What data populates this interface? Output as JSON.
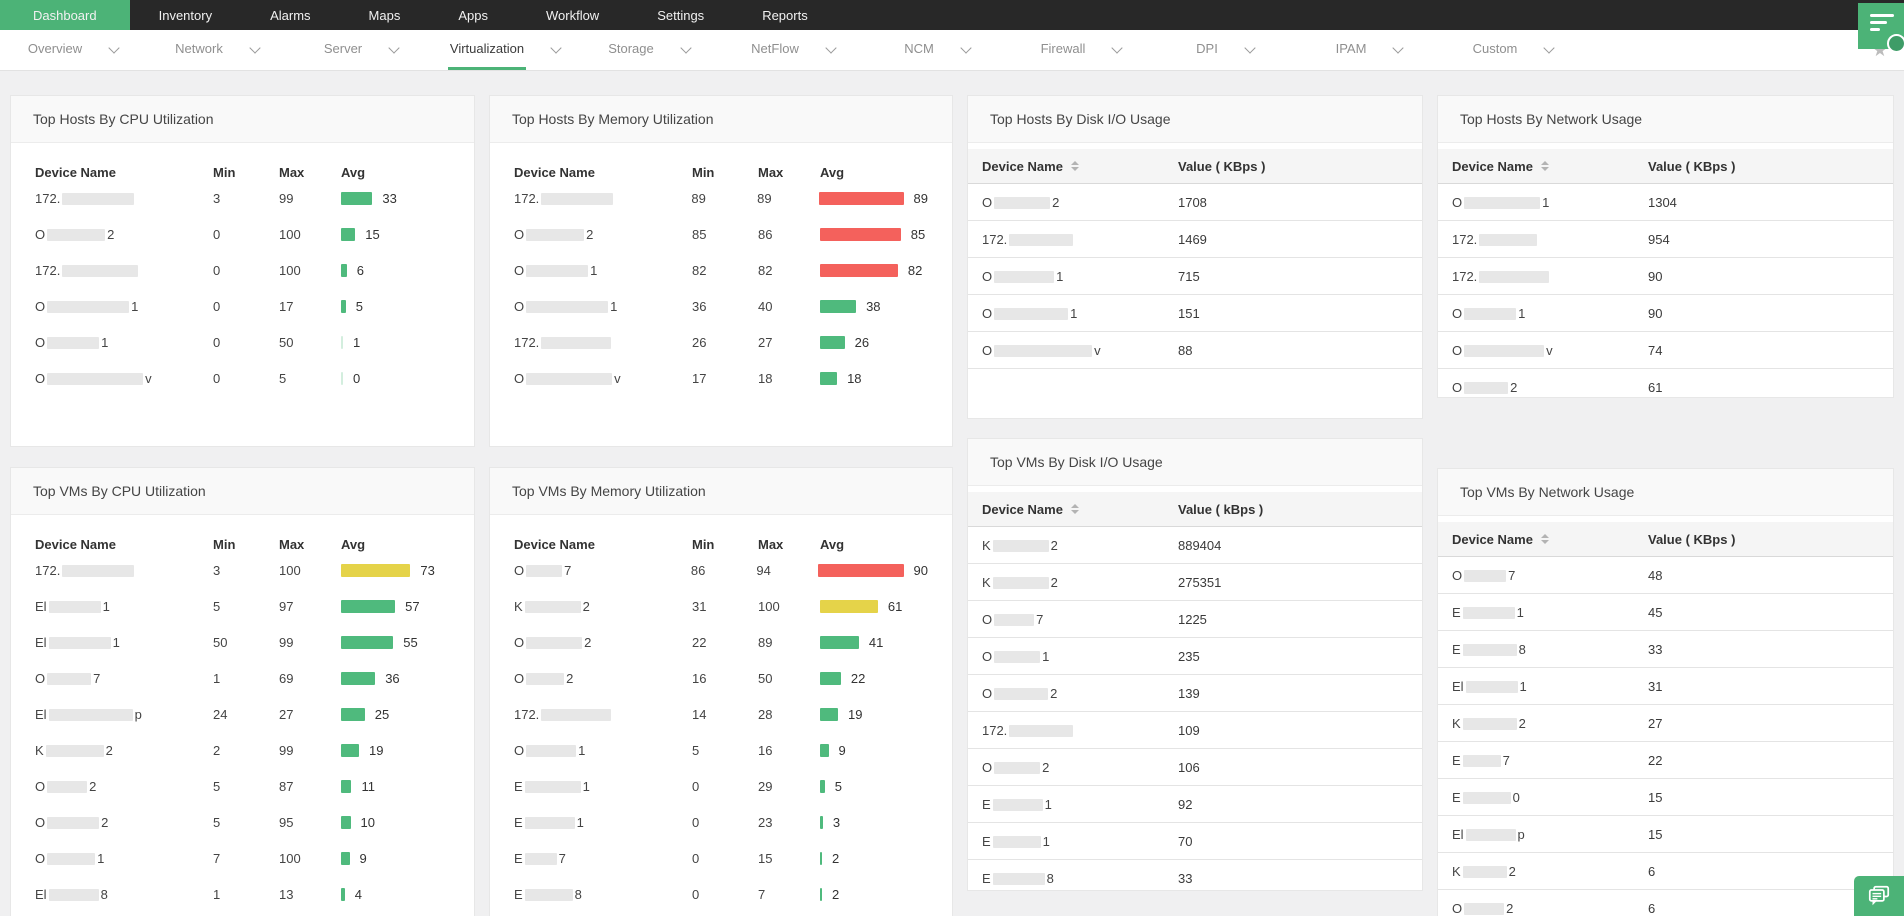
{
  "topnav": {
    "items": [
      {
        "label": "Dashboard",
        "active": true
      },
      {
        "label": "Inventory",
        "active": false
      },
      {
        "label": "Alarms",
        "active": false
      },
      {
        "label": "Maps",
        "active": false
      },
      {
        "label": "Apps",
        "active": false
      },
      {
        "label": "Workflow",
        "active": false
      },
      {
        "label": "Settings",
        "active": false
      },
      {
        "label": "Reports",
        "active": false
      }
    ]
  },
  "tabbar": {
    "tabs": [
      {
        "label": "Overview",
        "active": false
      },
      {
        "label": "Network",
        "active": false
      },
      {
        "label": "Server",
        "active": false
      },
      {
        "label": "Virtualization",
        "active": true
      },
      {
        "label": "Storage",
        "active": false
      },
      {
        "label": "NetFlow",
        "active": false
      },
      {
        "label": "NCM",
        "active": false
      },
      {
        "label": "Firewall",
        "active": false
      },
      {
        "label": "DPI",
        "active": false
      },
      {
        "label": "IPAM",
        "active": false
      },
      {
        "label": "Custom",
        "active": false
      }
    ],
    "star_icon": "★"
  },
  "colors": {
    "accent": "#4cb377",
    "bar_green": "#4fba7d",
    "bar_yellow": "#e5d349",
    "bar_red": "#f4615c"
  },
  "widgets": [
    {
      "id": "hosts_cpu",
      "title": "Top Hosts By CPU Utilization",
      "type": "bar",
      "columns": {
        "device": "Device Name",
        "min": "Min",
        "max": "Max",
        "avg": "Avg"
      },
      "rows": [
        {
          "name_prefix": "172.",
          "redacted_width": 72,
          "name_suffix": "",
          "min": "3",
          "max": "99",
          "avg": 33,
          "bar_color": "green"
        },
        {
          "name_prefix": "O",
          "redacted_width": 58,
          "name_suffix": "2",
          "min": "0",
          "max": "100",
          "avg": 15,
          "bar_color": "green"
        },
        {
          "name_prefix": "172.",
          "redacted_width": 76,
          "name_suffix": "",
          "min": "0",
          "max": "100",
          "avg": 6,
          "bar_color": "green"
        },
        {
          "name_prefix": "O",
          "redacted_width": 82,
          "name_suffix": "1",
          "min": "0",
          "max": "17",
          "avg": 5,
          "bar_color": "green"
        },
        {
          "name_prefix": "O",
          "redacted_width": 52,
          "name_suffix": "1",
          "min": "0",
          "max": "50",
          "avg": 1,
          "bar_color": "green"
        },
        {
          "name_prefix": "O",
          "redacted_width": 96,
          "name_suffix": "v",
          "min": "0",
          "max": "5",
          "avg": 0,
          "bar_color": "green"
        }
      ]
    },
    {
      "id": "hosts_mem",
      "title": "Top Hosts By Memory Utilization",
      "type": "bar",
      "columns": {
        "device": "Device Name",
        "min": "Min",
        "max": "Max",
        "avg": "Avg"
      },
      "rows": [
        {
          "name_prefix": "172.",
          "redacted_width": 72,
          "name_suffix": "",
          "min": "89",
          "max": "89",
          "avg": 89,
          "bar_color": "red"
        },
        {
          "name_prefix": "O",
          "redacted_width": 58,
          "name_suffix": "2",
          "min": "85",
          "max": "86",
          "avg": 85,
          "bar_color": "red"
        },
        {
          "name_prefix": "O",
          "redacted_width": 62,
          "name_suffix": "1",
          "min": "82",
          "max": "82",
          "avg": 82,
          "bar_color": "red"
        },
        {
          "name_prefix": "O",
          "redacted_width": 82,
          "name_suffix": "1",
          "min": "36",
          "max": "40",
          "avg": 38,
          "bar_color": "green"
        },
        {
          "name_prefix": "172.",
          "redacted_width": 70,
          "name_suffix": "",
          "min": "26",
          "max": "27",
          "avg": 26,
          "bar_color": "green"
        },
        {
          "name_prefix": "O",
          "redacted_width": 86,
          "name_suffix": "v",
          "min": "17",
          "max": "18",
          "avg": 18,
          "bar_color": "green"
        }
      ]
    },
    {
      "id": "hosts_disk",
      "title": "Top Hosts By Disk I/O Usage",
      "type": "value",
      "columns": {
        "device": "Device Name",
        "value": "Value ( KBps )"
      },
      "rows": [
        {
          "name_prefix": "O",
          "redacted_width": 56,
          "name_suffix": "2",
          "value": "1708"
        },
        {
          "name_prefix": "172.",
          "redacted_width": 64,
          "name_suffix": "",
          "value": "1469"
        },
        {
          "name_prefix": "O",
          "redacted_width": 60,
          "name_suffix": "1",
          "value": "715"
        },
        {
          "name_prefix": "O",
          "redacted_width": 74,
          "name_suffix": "1",
          "value": "151"
        },
        {
          "name_prefix": "O",
          "redacted_width": 98,
          "name_suffix": "v",
          "value": "88"
        }
      ]
    },
    {
      "id": "hosts_net",
      "title": "Top Hosts By Network Usage",
      "type": "value",
      "columns": {
        "device": "Device Name",
        "value": "Value ( KBps )"
      },
      "rows": [
        {
          "name_prefix": "O",
          "redacted_width": 76,
          "name_suffix": "1",
          "value": "1304"
        },
        {
          "name_prefix": "172.",
          "redacted_width": 58,
          "name_suffix": "",
          "value": "954"
        },
        {
          "name_prefix": "172.",
          "redacted_width": 70,
          "name_suffix": "",
          "value": "90"
        },
        {
          "name_prefix": "O",
          "redacted_width": 52,
          "name_suffix": "1",
          "value": "90"
        },
        {
          "name_prefix": "O",
          "redacted_width": 80,
          "name_suffix": "v",
          "value": "74"
        },
        {
          "name_prefix": "O",
          "redacted_width": 44,
          "name_suffix": "2",
          "value": "61"
        }
      ]
    },
    {
      "id": "vms_cpu",
      "title": "Top VMs By CPU Utilization",
      "type": "bar",
      "columns": {
        "device": "Device Name",
        "min": "Min",
        "max": "Max",
        "avg": "Avg"
      },
      "rows": [
        {
          "name_prefix": "172.",
          "redacted_width": 72,
          "name_suffix": "",
          "min": "3",
          "max": "100",
          "avg": 73,
          "bar_color": "yellow"
        },
        {
          "name_prefix": "El",
          "redacted_width": 52,
          "name_suffix": "1",
          "min": "5",
          "max": "97",
          "avg": 57,
          "bar_color": "green"
        },
        {
          "name_prefix": "El",
          "redacted_width": 62,
          "name_suffix": "1",
          "min": "50",
          "max": "99",
          "avg": 55,
          "bar_color": "green"
        },
        {
          "name_prefix": "O",
          "redacted_width": 44,
          "name_suffix": "7",
          "min": "1",
          "max": "69",
          "avg": 36,
          "bar_color": "green"
        },
        {
          "name_prefix": "El",
          "redacted_width": 84,
          "name_suffix": "p",
          "min": "24",
          "max": "27",
          "avg": 25,
          "bar_color": "green"
        },
        {
          "name_prefix": "K",
          "redacted_width": 58,
          "name_suffix": "2",
          "min": "2",
          "max": "99",
          "avg": 19,
          "bar_color": "green"
        },
        {
          "name_prefix": "O",
          "redacted_width": 40,
          "name_suffix": "2",
          "min": "5",
          "max": "87",
          "avg": 11,
          "bar_color": "green"
        },
        {
          "name_prefix": "O",
          "redacted_width": 52,
          "name_suffix": "2",
          "min": "5",
          "max": "95",
          "avg": 10,
          "bar_color": "green"
        },
        {
          "name_prefix": "O",
          "redacted_width": 48,
          "name_suffix": "1",
          "min": "7",
          "max": "100",
          "avg": 9,
          "bar_color": "green"
        },
        {
          "name_prefix": "El",
          "redacted_width": 50,
          "name_suffix": "8",
          "min": "1",
          "max": "13",
          "avg": 4,
          "bar_color": "green"
        }
      ]
    },
    {
      "id": "vms_mem",
      "title": "Top VMs By Memory Utilization",
      "type": "bar",
      "columns": {
        "device": "Device Name",
        "min": "Min",
        "max": "Max",
        "avg": "Avg"
      },
      "rows": [
        {
          "name_prefix": "O",
          "redacted_width": 36,
          "name_suffix": "7",
          "min": "86",
          "max": "94",
          "avg": 90,
          "bar_color": "red"
        },
        {
          "name_prefix": "K",
          "redacted_width": 56,
          "name_suffix": "2",
          "min": "31",
          "max": "100",
          "avg": 61,
          "bar_color": "yellow"
        },
        {
          "name_prefix": "O",
          "redacted_width": 56,
          "name_suffix": "2",
          "min": "22",
          "max": "89",
          "avg": 41,
          "bar_color": "green"
        },
        {
          "name_prefix": "O",
          "redacted_width": 38,
          "name_suffix": "2",
          "min": "16",
          "max": "50",
          "avg": 22,
          "bar_color": "green"
        },
        {
          "name_prefix": "172.",
          "redacted_width": 70,
          "name_suffix": "",
          "min": "14",
          "max": "28",
          "avg": 19,
          "bar_color": "green"
        },
        {
          "name_prefix": "O",
          "redacted_width": 50,
          "name_suffix": "1",
          "min": "5",
          "max": "16",
          "avg": 9,
          "bar_color": "green"
        },
        {
          "name_prefix": "E",
          "redacted_width": 56,
          "name_suffix": "1",
          "min": "0",
          "max": "29",
          "avg": 5,
          "bar_color": "green"
        },
        {
          "name_prefix": "E",
          "redacted_width": 50,
          "name_suffix": "1",
          "min": "0",
          "max": "23",
          "avg": 3,
          "bar_color": "green"
        },
        {
          "name_prefix": "E",
          "redacted_width": 32,
          "name_suffix": "7",
          "min": "0",
          "max": "15",
          "avg": 2,
          "bar_color": "green"
        },
        {
          "name_prefix": "E",
          "redacted_width": 48,
          "name_suffix": "8",
          "min": "0",
          "max": "7",
          "avg": 2,
          "bar_color": "green"
        }
      ]
    },
    {
      "id": "vms_disk",
      "title": "Top VMs By Disk I/O Usage",
      "type": "value",
      "columns": {
        "device": "Device Name",
        "value": "Value ( kBps )"
      },
      "rows": [
        {
          "name_prefix": "K",
          "redacted_width": 56,
          "name_suffix": "2",
          "value": "889404"
        },
        {
          "name_prefix": "K",
          "redacted_width": 56,
          "name_suffix": "2",
          "value": "275351"
        },
        {
          "name_prefix": "O",
          "redacted_width": 40,
          "name_suffix": "7",
          "value": "1225"
        },
        {
          "name_prefix": "O",
          "redacted_width": 46,
          "name_suffix": "1",
          "value": "235"
        },
        {
          "name_prefix": "O",
          "redacted_width": 54,
          "name_suffix": "2",
          "value": "139"
        },
        {
          "name_prefix": "172.",
          "redacted_width": 64,
          "name_suffix": "",
          "value": "109"
        },
        {
          "name_prefix": "O",
          "redacted_width": 46,
          "name_suffix": "2",
          "value": "106"
        },
        {
          "name_prefix": "E",
          "redacted_width": 50,
          "name_suffix": "1",
          "value": "92"
        },
        {
          "name_prefix": "E",
          "redacted_width": 48,
          "name_suffix": "1",
          "value": "70"
        },
        {
          "name_prefix": "E",
          "redacted_width": 52,
          "name_suffix": "8",
          "value": "33"
        }
      ]
    },
    {
      "id": "vms_net",
      "title": "Top VMs By Network Usage",
      "type": "value",
      "columns": {
        "device": "Device Name",
        "value": "Value ( KBps )"
      },
      "rows": [
        {
          "name_prefix": "O",
          "redacted_width": 42,
          "name_suffix": "7",
          "value": "48"
        },
        {
          "name_prefix": "E",
          "redacted_width": 52,
          "name_suffix": "1",
          "value": "45"
        },
        {
          "name_prefix": "E",
          "redacted_width": 54,
          "name_suffix": "8",
          "value": "33"
        },
        {
          "name_prefix": "El",
          "redacted_width": 52,
          "name_suffix": "1",
          "value": "31"
        },
        {
          "name_prefix": "K",
          "redacted_width": 54,
          "name_suffix": "2",
          "value": "27"
        },
        {
          "name_prefix": "E",
          "redacted_width": 38,
          "name_suffix": "7",
          "value": "22"
        },
        {
          "name_prefix": "E",
          "redacted_width": 48,
          "name_suffix": "0",
          "value": "15"
        },
        {
          "name_prefix": "El",
          "redacted_width": 50,
          "name_suffix": "p",
          "value": "15"
        },
        {
          "name_prefix": "K",
          "redacted_width": 44,
          "name_suffix": "2",
          "value": "6"
        },
        {
          "name_prefix": "O",
          "redacted_width": 40,
          "name_suffix": "2",
          "value": "6"
        }
      ]
    }
  ]
}
